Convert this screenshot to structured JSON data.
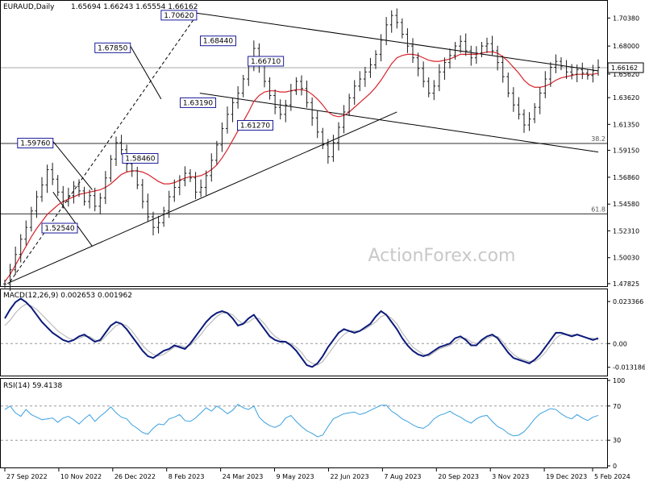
{
  "header": {
    "symbol": "EURAUD,Daily",
    "ohlc": "1.65694 1.66243 1.65554 1.66162"
  },
  "watermark": "ActionForex.com",
  "colors": {
    "price_bars": "#1a1a1a",
    "ma_line": "#d9232a",
    "macd_line": "#0b1a7a",
    "macd_signal": "#b0b0b0",
    "rsi_line": "#3aa0e0",
    "channel_line": "#000000",
    "level_line": "#303030",
    "dashed_trend": "#000000",
    "label_border": "#1a1a99",
    "price_tag_bg": "#ffffff"
  },
  "chart_data": [
    {
      "type": "candlestick",
      "title": "EURAUD,Daily",
      "y_ticks": [
        "1.70380",
        "1.68000",
        "1.65620",
        "1.63620",
        "1.61350",
        "1.59150",
        "1.56860",
        "1.54580",
        "1.52310",
        "1.50030",
        "1.47825"
      ],
      "ylim": [
        1.4782,
        1.715
      ],
      "x_ticks": [
        "27 Sep 2022",
        "10 Nov 2022",
        "26 Dec 2022",
        "8 Feb 2023",
        "24 Mar 2023",
        "9 May 2023",
        "22 Jun 2023",
        "7 Aug 2023",
        "20 Sep 2023",
        "3 Nov 2023",
        "19 Dec 2023",
        "5 Feb 2024"
      ],
      "current_price": "1.66162",
      "fib_levels": [
        {
          "label": "38.2",
          "value": 1.5973
        },
        {
          "label": "61.8",
          "value": 1.5375
        }
      ],
      "annotations": [
        {
          "text": "1.70620",
          "x_index": 36.2,
          "value": 1.7062
        },
        {
          "text": "1.68440",
          "x_index": 43.6,
          "value": 1.6844
        },
        {
          "text": "1.67850",
          "x_index": 23.7,
          "value": 1.6785
        },
        {
          "text": "1.66710",
          "x_index": 52.6,
          "value": 1.6671
        },
        {
          "text": "1.63190",
          "x_index": 39.8,
          "value": 1.6319
        },
        {
          "text": "1.61270",
          "x_index": 50.6,
          "value": 1.6127
        },
        {
          "text": "1.59760",
          "x_index": 9.1,
          "value": 1.5976
        },
        {
          "text": "1.58460",
          "x_index": 28.9,
          "value": 1.5846
        },
        {
          "text": "1.52540",
          "x_index": 13.7,
          "value": 1.5254
        }
      ],
      "series": [
        {
          "name": "price",
          "close": [
            1.478,
            1.49,
            1.503,
            1.516,
            1.526,
            1.54,
            1.552,
            1.562,
            1.575,
            1.567,
            1.556,
            1.548,
            1.553,
            1.561,
            1.557,
            1.548,
            1.553,
            1.544,
            1.551,
            1.568,
            1.584,
            1.598,
            1.592,
            1.58,
            1.574,
            1.562,
            1.548,
            1.535,
            1.526,
            1.53,
            1.54,
            1.552,
            1.56,
            1.566,
            1.572,
            1.568,
            1.556,
            1.56,
            1.57,
            1.583,
            1.596,
            1.61,
            1.622,
            1.632,
            1.64,
            1.652,
            1.663,
            1.678,
            1.664,
            1.65,
            1.638,
            1.628,
            1.622,
            1.63,
            1.642,
            1.65,
            1.644,
            1.632,
            1.619,
            1.607,
            1.596,
            1.586,
            1.598,
            1.611,
            1.624,
            1.636,
            1.646,
            1.652,
            1.658,
            1.664,
            1.673,
            1.685,
            1.698,
            1.706,
            1.7,
            1.69,
            1.68,
            1.67,
            1.661,
            1.65,
            1.64,
            1.646,
            1.658,
            1.666,
            1.672,
            1.68,
            1.684,
            1.676,
            1.67,
            1.674,
            1.68,
            1.682,
            1.676,
            1.666,
            1.654,
            1.64,
            1.63,
            1.622,
            1.613,
            1.618,
            1.628,
            1.64,
            1.652,
            1.662,
            1.667,
            1.663,
            1.658,
            1.656,
            1.66,
            1.657,
            1.655,
            1.659,
            1.662
          ]
        },
        {
          "name": "ma",
          "values": [
            1.48,
            1.486,
            1.494,
            1.502,
            1.51,
            1.518,
            1.525,
            1.531,
            1.537,
            1.541,
            1.545,
            1.548,
            1.55,
            1.552,
            1.554,
            1.555,
            1.556,
            1.557,
            1.558,
            1.56,
            1.563,
            1.567,
            1.571,
            1.573,
            1.574,
            1.574,
            1.573,
            1.571,
            1.568,
            1.565,
            1.563,
            1.563,
            1.564,
            1.566,
            1.568,
            1.569,
            1.569,
            1.57,
            1.572,
            1.575,
            1.579,
            1.585,
            1.592,
            1.6,
            1.608,
            1.616,
            1.624,
            1.633,
            1.638,
            1.641,
            1.642,
            1.642,
            1.641,
            1.641,
            1.642,
            1.643,
            1.643,
            1.642,
            1.639,
            1.635,
            1.63,
            1.624,
            1.621,
            1.62,
            1.621,
            1.624,
            1.628,
            1.632,
            1.636,
            1.64,
            1.645,
            1.651,
            1.658,
            1.665,
            1.67,
            1.672,
            1.673,
            1.673,
            1.672,
            1.67,
            1.668,
            1.667,
            1.667,
            1.668,
            1.669,
            1.671,
            1.673,
            1.673,
            1.673,
            1.673,
            1.674,
            1.675,
            1.675,
            1.674,
            1.671,
            1.667,
            1.662,
            1.657,
            1.651,
            1.647,
            1.645,
            1.645,
            1.646,
            1.648,
            1.651,
            1.653,
            1.654,
            1.655,
            1.656,
            1.656,
            1.656,
            1.656,
            1.657
          ]
        }
      ]
    },
    {
      "type": "line",
      "title": "MACD(12,26,9) 0.002653 0.001962",
      "y_ticks": [
        "0.023366",
        "0.00",
        "-0.013186"
      ],
      "ylim": [
        -0.016,
        0.027
      ],
      "series": [
        {
          "name": "macd",
          "values": [
            0.014,
            0.019,
            0.023,
            0.025,
            0.023,
            0.02,
            0.016,
            0.012,
            0.009,
            0.006,
            0.004,
            0.002,
            0.001,
            0.002,
            0.004,
            0.005,
            0.003,
            0.001,
            0.002,
            0.006,
            0.01,
            0.012,
            0.011,
            0.008,
            0.004,
            0.0,
            -0.004,
            -0.007,
            -0.008,
            -0.006,
            -0.004,
            -0.003,
            -0.001,
            -0.002,
            -0.003,
            0.0,
            0.004,
            0.008,
            0.012,
            0.015,
            0.017,
            0.018,
            0.017,
            0.014,
            0.01,
            0.011,
            0.014,
            0.016,
            0.012,
            0.008,
            0.004,
            0.002,
            0.001,
            0.001,
            -0.001,
            -0.004,
            -0.008,
            -0.012,
            -0.013,
            -0.011,
            -0.007,
            -0.002,
            0.002,
            0.006,
            0.008,
            0.007,
            0.006,
            0.007,
            0.009,
            0.011,
            0.015,
            0.018,
            0.016,
            0.012,
            0.008,
            0.003,
            -0.001,
            -0.004,
            -0.006,
            -0.007,
            -0.006,
            -0.004,
            -0.002,
            -0.001,
            0.0,
            0.003,
            0.004,
            0.002,
            -0.001,
            -0.001,
            0.002,
            0.004,
            0.005,
            0.003,
            -0.001,
            -0.005,
            -0.008,
            -0.009,
            -0.01,
            -0.011,
            -0.009,
            -0.006,
            -0.002,
            0.002,
            0.006,
            0.006,
            0.005,
            0.004,
            0.005,
            0.004,
            0.003,
            0.002,
            0.003
          ]
        },
        {
          "name": "signal",
          "values": [
            0.01,
            0.013,
            0.017,
            0.02,
            0.022,
            0.021,
            0.019,
            0.016,
            0.013,
            0.01,
            0.007,
            0.005,
            0.003,
            0.002,
            0.003,
            0.004,
            0.004,
            0.002,
            0.001,
            0.004,
            0.007,
            0.01,
            0.011,
            0.01,
            0.007,
            0.003,
            -0.001,
            -0.004,
            -0.006,
            -0.007,
            -0.006,
            -0.004,
            -0.002,
            -0.001,
            -0.002,
            -0.001,
            0.002,
            0.005,
            0.009,
            0.012,
            0.015,
            0.017,
            0.017,
            0.016,
            0.013,
            0.011,
            0.012,
            0.014,
            0.014,
            0.011,
            0.007,
            0.004,
            0.002,
            0.001,
            0.0,
            -0.002,
            -0.005,
            -0.009,
            -0.011,
            -0.012,
            -0.01,
            -0.006,
            -0.002,
            0.002,
            0.005,
            0.007,
            0.007,
            0.007,
            0.008,
            0.01,
            0.012,
            0.015,
            0.016,
            0.014,
            0.011,
            0.006,
            0.002,
            -0.002,
            -0.004,
            -0.006,
            -0.007,
            -0.005,
            -0.003,
            -0.002,
            -0.001,
            0.001,
            0.003,
            0.003,
            0.001,
            0.0,
            0.001,
            0.003,
            0.004,
            0.004,
            0.001,
            -0.003,
            -0.006,
            -0.008,
            -0.009,
            -0.01,
            -0.01,
            -0.008,
            -0.005,
            -0.001,
            0.003,
            0.005,
            0.005,
            0.005,
            0.005,
            0.004,
            0.003,
            0.003,
            0.002
          ]
        }
      ]
    },
    {
      "type": "line",
      "title": "RSI(14) 59.4138",
      "y_ticks": [
        "100",
        "70",
        "30",
        "0"
      ],
      "ylim": [
        0,
        100
      ],
      "reference_lines": [
        70,
        30
      ],
      "series": [
        {
          "name": "rsi",
          "values": [
            66,
            70,
            62,
            58,
            66,
            60,
            57,
            54,
            55,
            56,
            51,
            56,
            58,
            54,
            49,
            55,
            60,
            52,
            58,
            63,
            69,
            62,
            57,
            55,
            48,
            44,
            39,
            37,
            44,
            49,
            48,
            55,
            57,
            60,
            53,
            52,
            56,
            62,
            68,
            64,
            70,
            66,
            61,
            65,
            72,
            68,
            66,
            70,
            57,
            51,
            47,
            45,
            48,
            56,
            59,
            52,
            46,
            41,
            38,
            34,
            36,
            46,
            55,
            58,
            61,
            62,
            63,
            60,
            62,
            65,
            68,
            71,
            71,
            64,
            60,
            55,
            52,
            48,
            45,
            44,
            48,
            55,
            59,
            61,
            64,
            60,
            57,
            53,
            50,
            55,
            58,
            59,
            52,
            46,
            43,
            38,
            35,
            36,
            40,
            47,
            55,
            61,
            64,
            67,
            66,
            61,
            57,
            55,
            60,
            56,
            53,
            57,
            59
          ]
        }
      ]
    }
  ]
}
